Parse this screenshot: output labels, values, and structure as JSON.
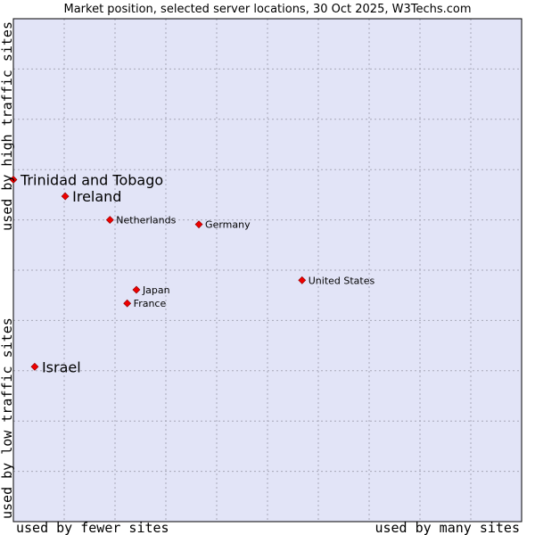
{
  "chart_data": {
    "type": "scatter",
    "title": "Market position, selected server locations, 30 Oct 2025, W3Techs.com",
    "xlabel_left": "used by fewer sites",
    "xlabel_right": "used by many sites",
    "ylabel_bottom": "used by low traffic sites",
    "ylabel_top": "used by high traffic sites",
    "xlim": [
      0,
      10
    ],
    "ylim": [
      0,
      10
    ],
    "grid": true,
    "colors": {
      "plot_bg": "#e2e4f7",
      "grid": "#a8a8b8",
      "point": "#ee0000",
      "point_edge": "#880000",
      "frame": "#000000"
    },
    "points": [
      {
        "label": "Trinidad and Tobago",
        "x": 0.0,
        "y": 6.8,
        "emphasis": true
      },
      {
        "label": "Ireland",
        "x": 1.02,
        "y": 6.47,
        "emphasis": true
      },
      {
        "label": "Netherlands",
        "x": 1.9,
        "y": 6.0,
        "emphasis": false
      },
      {
        "label": "Germany",
        "x": 3.65,
        "y": 5.91,
        "emphasis": false
      },
      {
        "label": "United States",
        "x": 5.68,
        "y": 4.8,
        "emphasis": false
      },
      {
        "label": "Japan",
        "x": 2.42,
        "y": 4.61,
        "emphasis": false
      },
      {
        "label": "France",
        "x": 2.24,
        "y": 4.34,
        "emphasis": false
      },
      {
        "label": "Israel",
        "x": 0.42,
        "y": 3.08,
        "emphasis": true
      }
    ]
  }
}
